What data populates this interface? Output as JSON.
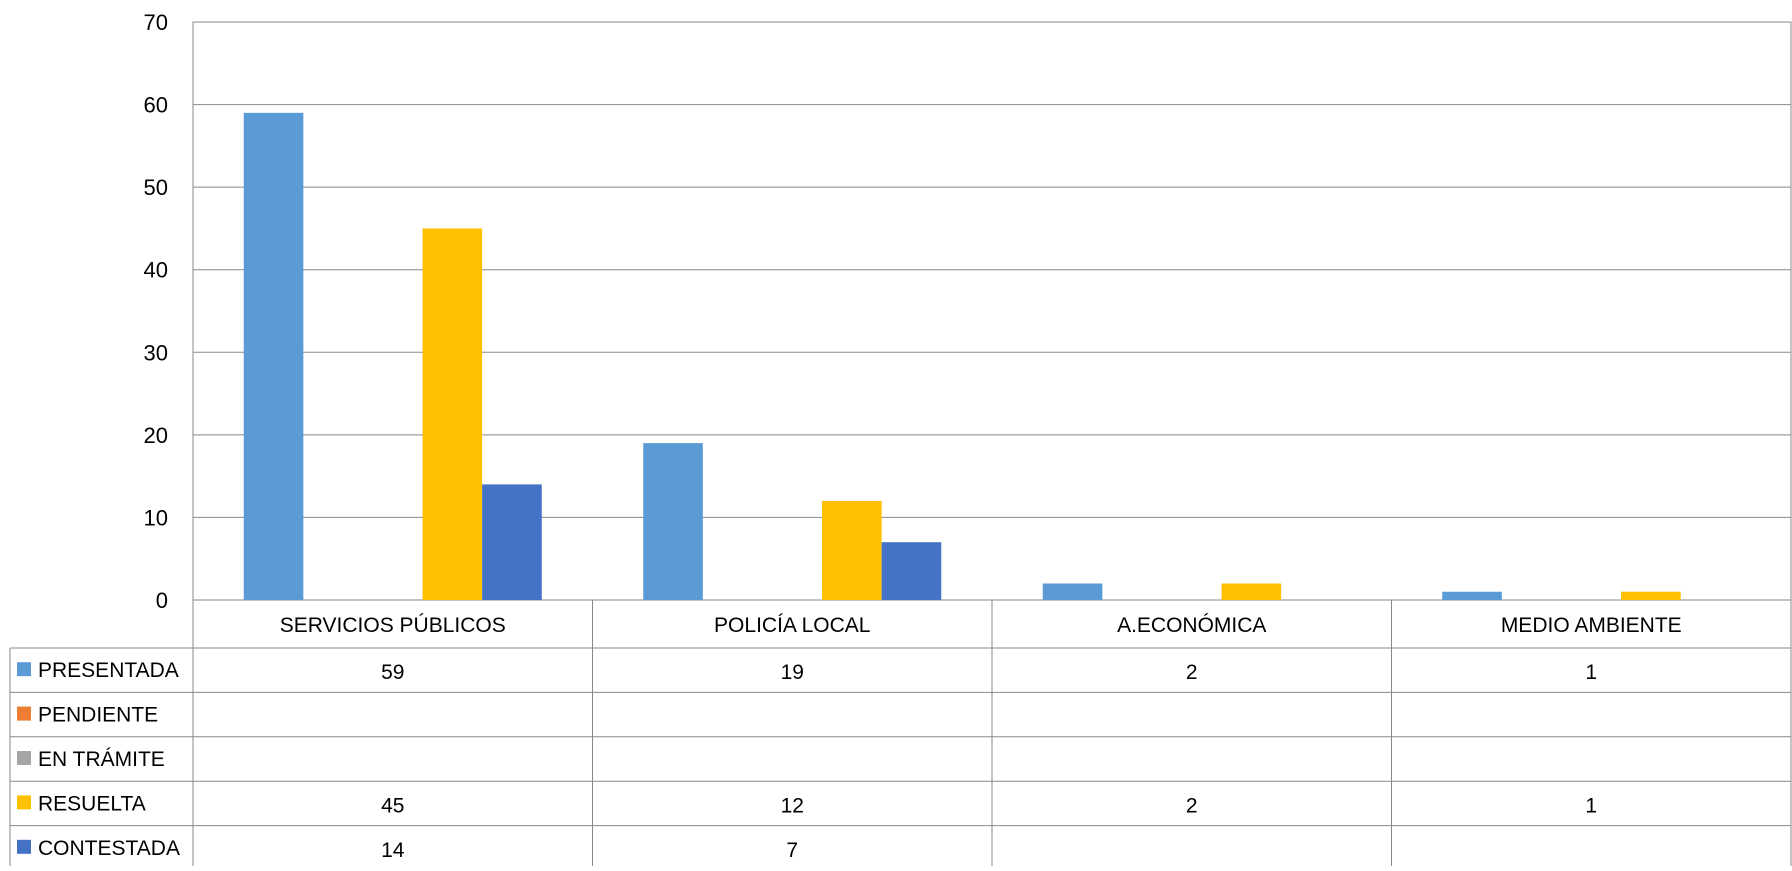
{
  "chart_data": {
    "type": "bar",
    "title": "",
    "xlabel": "",
    "ylabel": "",
    "ylim": [
      0,
      70
    ],
    "y_ticks": [
      0,
      10,
      20,
      30,
      40,
      50,
      60,
      70
    ],
    "grid": true,
    "legend_placement": "data-table-left",
    "categories": [
      "SERVICIOS PÚBLICOS",
      "POLICÍA LOCAL",
      "A.ECONÓMICA",
      "MEDIO AMBIENTE"
    ],
    "series": [
      {
        "name": "PRESENTADA",
        "color": "#5B9BD5",
        "values": [
          59,
          19,
          2,
          1
        ]
      },
      {
        "name": "PENDIENTE",
        "color": "#ED7D31",
        "values": [
          null,
          null,
          null,
          null
        ]
      },
      {
        "name": "EN TRÁMITE",
        "color": "#A5A5A5",
        "values": [
          null,
          null,
          null,
          null
        ]
      },
      {
        "name": "RESUELTA",
        "color": "#FFC000",
        "values": [
          45,
          12,
          2,
          1
        ]
      },
      {
        "name": "CONTESTADA",
        "color": "#4472C4",
        "values": [
          14,
          7,
          null,
          null
        ]
      }
    ],
    "data_table": true
  }
}
